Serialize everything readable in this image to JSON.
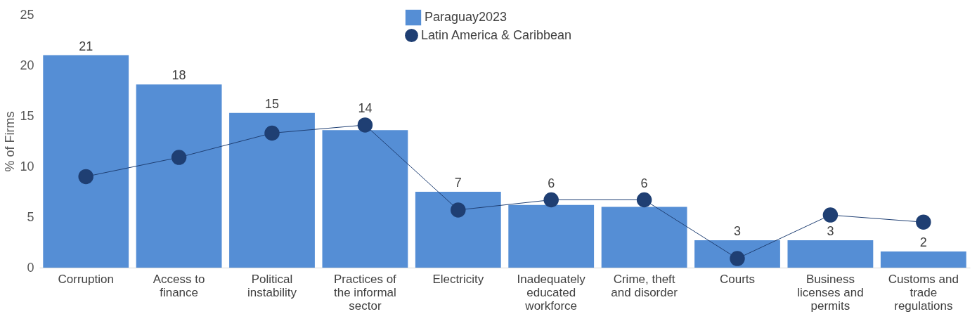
{
  "chart_data": {
    "type": "bar",
    "ylabel": "% of Firms",
    "categories": [
      "Corruption",
      "Access to finance",
      "Political instability",
      "Practices of the informal sector",
      "Electricity",
      "Inadequately educated workforce",
      "Crime, theft and disorder",
      "Courts",
      "Business licenses and permits",
      "Customs and trade regulations"
    ],
    "series": [
      {
        "name": "Paraguay2023",
        "color": "#558ed5",
        "values": [
          21.0,
          18.1,
          15.3,
          13.6,
          7.5,
          6.2,
          6.0,
          2.7,
          2.7,
          1.6
        ],
        "value_labels": [
          "21",
          "18",
          "15",
          "14",
          "7",
          "6",
          "6",
          "3",
          "3",
          "2"
        ]
      },
      {
        "name": "Latin America & Caribbean",
        "type": "line",
        "color": "#1f3f73",
        "values": [
          9.0,
          10.9,
          13.3,
          14.1,
          5.7,
          6.7,
          6.7,
          0.9,
          5.2,
          4.5
        ]
      }
    ],
    "ylim": [
      0,
      25
    ],
    "yticks": [
      0,
      5,
      10,
      15,
      20,
      25
    ],
    "grid": false,
    "legend": "top",
    "marker": "circle"
  }
}
